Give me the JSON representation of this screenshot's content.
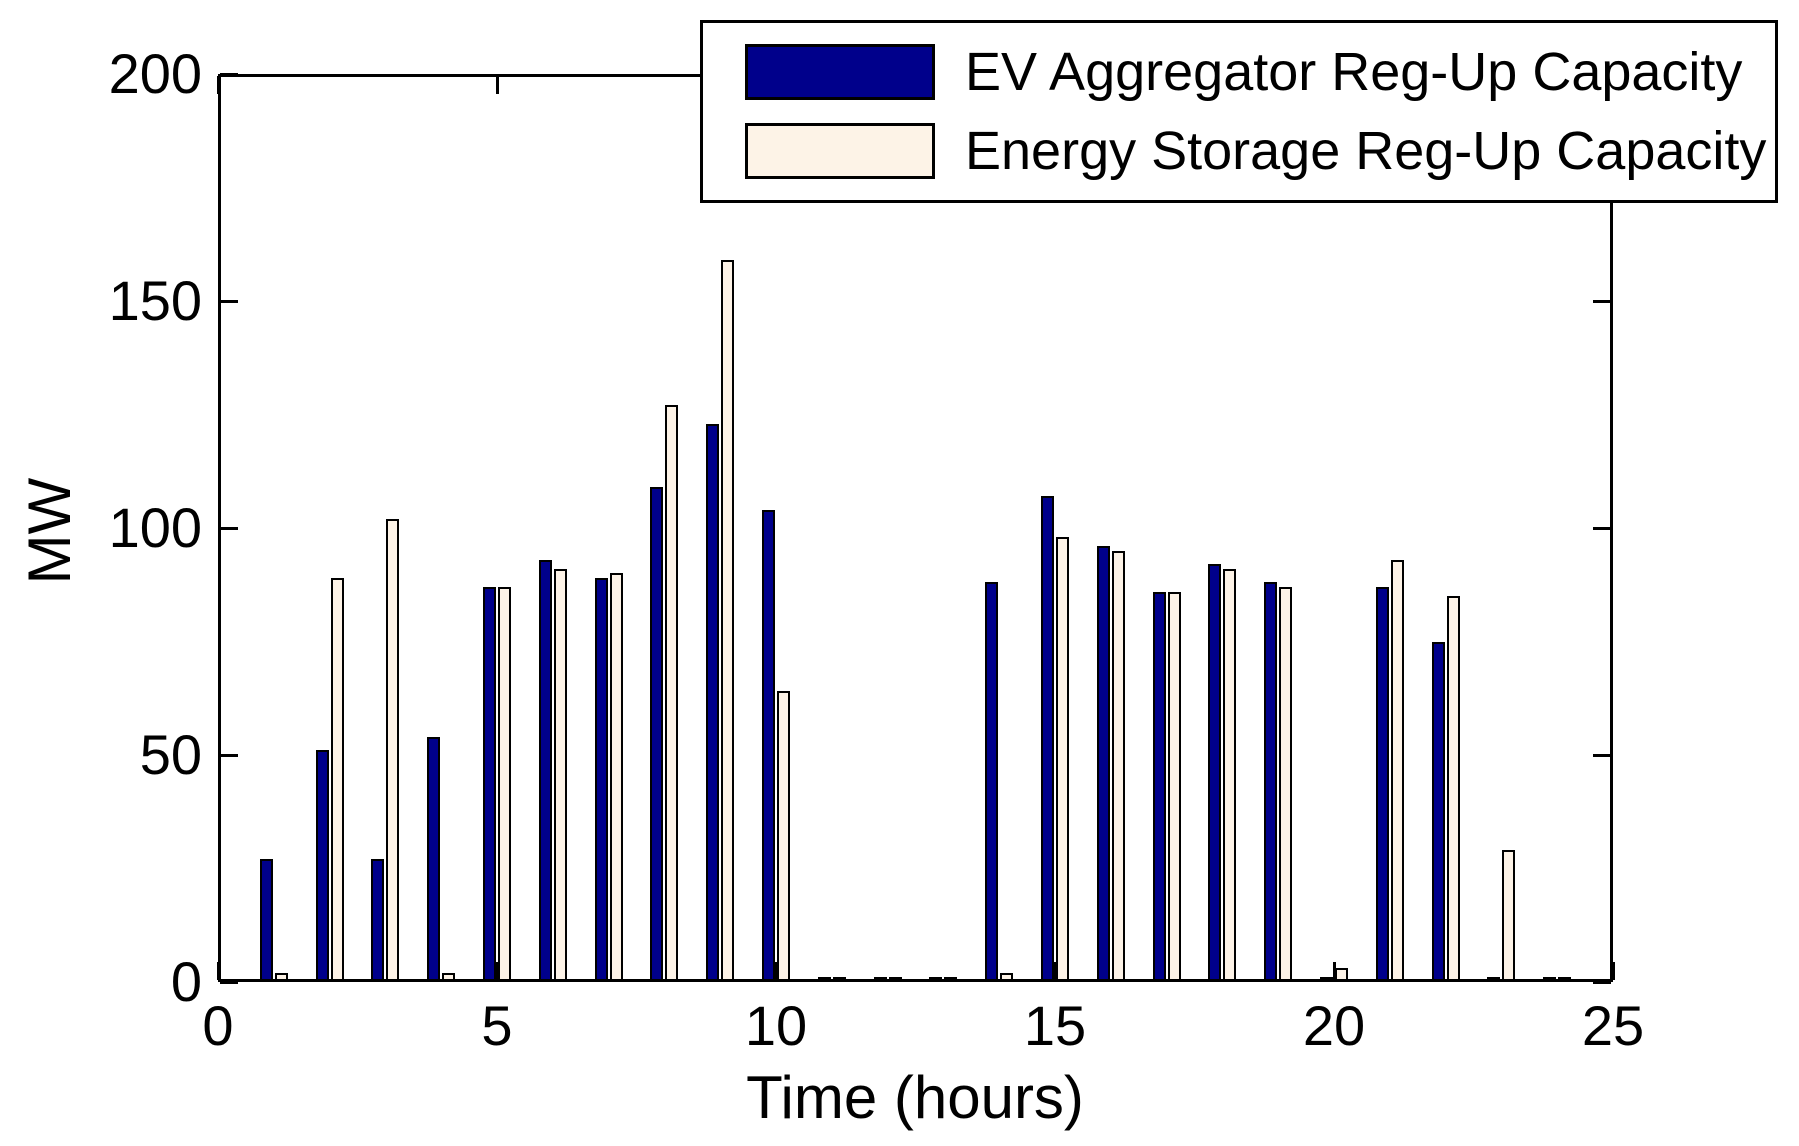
{
  "figure": {
    "background": "#FFFFFF",
    "frame_color": "#000000"
  },
  "legend": {
    "items": [
      {
        "label": "EV Aggregator Reg-Up Capacity",
        "color": "#00008B"
      },
      {
        "label": "Energy Storage Reg-Up Capacity",
        "color": "#FDF3E7"
      }
    ]
  },
  "chart_data": {
    "type": "bar",
    "title": "",
    "xlabel": "Time (hours)",
    "ylabel": "MW",
    "xlim": [
      0,
      25
    ],
    "ylim": [
      0,
      200
    ],
    "xticks": [
      0,
      5,
      10,
      15,
      20,
      25
    ],
    "yticks": [
      0,
      50,
      100,
      150,
      200
    ],
    "grid": false,
    "legend_position": "top-right",
    "bar_outline_color": "#000000",
    "categories": [
      1,
      2,
      3,
      4,
      5,
      6,
      7,
      8,
      9,
      10,
      11,
      12,
      13,
      14,
      15,
      16,
      17,
      18,
      19,
      20,
      21,
      22,
      23,
      24
    ],
    "series": [
      {
        "name": "EV Aggregator Reg-Up Capacity",
        "color": "#00008B",
        "values": [
          27,
          51,
          27,
          54,
          87,
          93,
          89,
          109,
          123,
          104,
          1,
          1,
          1,
          88,
          107,
          96,
          86,
          92,
          88,
          1,
          87,
          75,
          1,
          1
        ]
      },
      {
        "name": "Energy Storage Reg-Up Capacity",
        "color": "#FDF3E7",
        "values": [
          2,
          89,
          102,
          2,
          87,
          91,
          90,
          127,
          159,
          64,
          1,
          1,
          1,
          2,
          98,
          95,
          86,
          91,
          87,
          3,
          93,
          85,
          29,
          1
        ]
      }
    ]
  }
}
